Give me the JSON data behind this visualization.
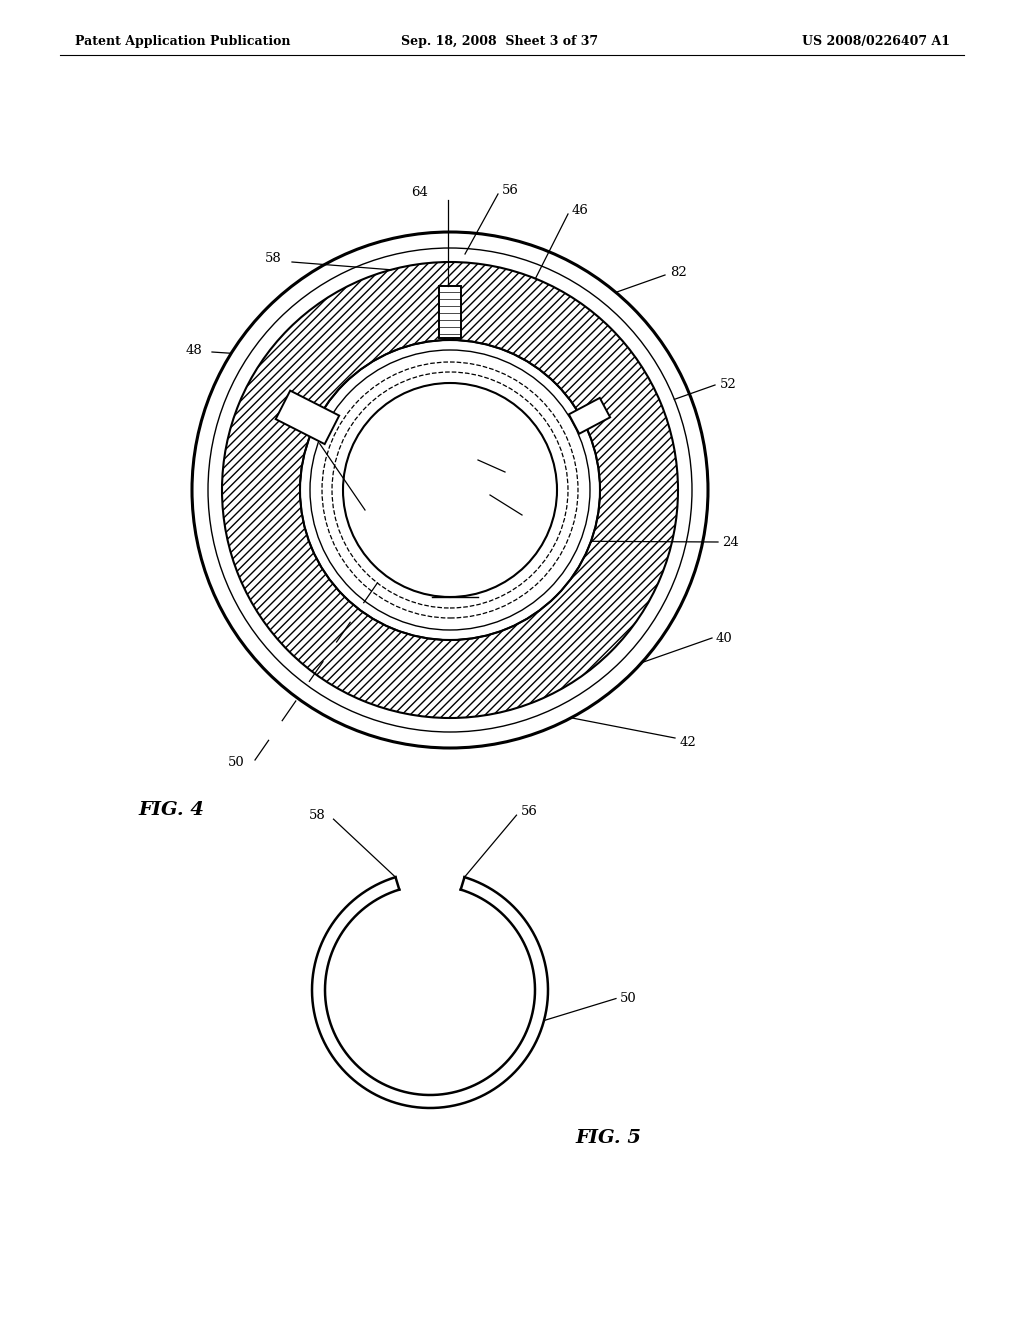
{
  "bg_color": "#ffffff",
  "line_color": "#000000",
  "header_left": "Patent Application Publication",
  "header_mid": "Sep. 18, 2008  Sheet 3 of 37",
  "header_right": "US 2008/0226407 A1",
  "fig4_label": "FIG. 4",
  "fig5_label": "FIG. 5"
}
